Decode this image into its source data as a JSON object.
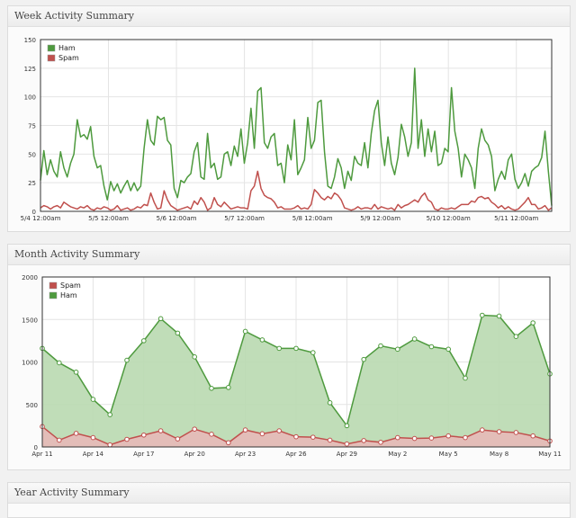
{
  "panels": {
    "week_title": "Week Activity Summary",
    "month_title": "Month Activity Summary",
    "year_title": "Year Activity Summary"
  },
  "colors": {
    "ham": "#4e9a3e",
    "spam": "#c0504d",
    "ham_fill": "#b9d9b0",
    "spam_fill": "#e7b9b8"
  },
  "chart_data": [
    {
      "type": "line",
      "title": "Week Activity Summary",
      "ylim": [
        0,
        150
      ],
      "yticks": [
        0,
        25,
        50,
        75,
        100,
        125,
        150
      ],
      "xlim": [
        0,
        7.52
      ],
      "xticks": [
        {
          "x": 0,
          "label": "5/4 12:00am"
        },
        {
          "x": 1,
          "label": "5/5 12:00am"
        },
        {
          "x": 2,
          "label": "5/6 12:00am"
        },
        {
          "x": 3,
          "label": "5/7 12:00am"
        },
        {
          "x": 4,
          "label": "5/8 12:00am"
        },
        {
          "x": 5,
          "label": "5/9 12:00am"
        },
        {
          "x": 6,
          "label": "5/10 12:00am"
        },
        {
          "x": 7,
          "label": "5/11 12:00am"
        }
      ],
      "legend": [
        "Ham",
        "Spam"
      ],
      "legend_position": "top-left",
      "series": [
        {
          "name": "Ham",
          "values": [
            27,
            53,
            32,
            45,
            35,
            30,
            52,
            38,
            30,
            42,
            50,
            80,
            65,
            67,
            63,
            74,
            48,
            38,
            40,
            22,
            10,
            26,
            18,
            24,
            16,
            22,
            27,
            18,
            25,
            18,
            22,
            55,
            80,
            62,
            58,
            83,
            80,
            82,
            62,
            58,
            20,
            12,
            27,
            25,
            30,
            33,
            52,
            60,
            30,
            28,
            68,
            38,
            42,
            28,
            30,
            50,
            52,
            40,
            57,
            48,
            72,
            42,
            60,
            90,
            55,
            105,
            108,
            60,
            55,
            65,
            68,
            40,
            42,
            25,
            58,
            45,
            80,
            32,
            38,
            45,
            82,
            55,
            62,
            95,
            97,
            52,
            22,
            20,
            30,
            46,
            38,
            20,
            35,
            27,
            48,
            42,
            40,
            60,
            38,
            68,
            88,
            97,
            60,
            40,
            65,
            42,
            32,
            47,
            76,
            65,
            48,
            60,
            125,
            55,
            80,
            48,
            72,
            52,
            70,
            40,
            42,
            55,
            52,
            108,
            70,
            55,
            30,
            50,
            45,
            38,
            20,
            55,
            72,
            62,
            58,
            48,
            18,
            28,
            35,
            28,
            45,
            50,
            28,
            20,
            25,
            33,
            22,
            35,
            38,
            40,
            47,
            70,
            35,
            5
          ],
          "color_key": "ham"
        },
        {
          "name": "Spam",
          "values": [
            3,
            5,
            4,
            2,
            4,
            5,
            3,
            8,
            6,
            4,
            3,
            2,
            4,
            3,
            5,
            2,
            1,
            3,
            2,
            4,
            3,
            1,
            2,
            5,
            1,
            2,
            3,
            1,
            2,
            4,
            3,
            6,
            5,
            16,
            8,
            2,
            3,
            18,
            10,
            5,
            3,
            1,
            2,
            3,
            4,
            2,
            9,
            6,
            12,
            8,
            1,
            3,
            12,
            6,
            4,
            8,
            5,
            2,
            3,
            4,
            3,
            3,
            2,
            18,
            22,
            35,
            20,
            14,
            12,
            11,
            8,
            3,
            4,
            2,
            2,
            2,
            3,
            5,
            2,
            3,
            2,
            6,
            19,
            16,
            12,
            10,
            13,
            11,
            16,
            14,
            10,
            3,
            2,
            1,
            2,
            4,
            2,
            3,
            3,
            2,
            6,
            2,
            4,
            3,
            2,
            3,
            1,
            6,
            3,
            5,
            6,
            8,
            10,
            8,
            13,
            16,
            10,
            8,
            2,
            1,
            3,
            2,
            2,
            3,
            2,
            4,
            6,
            6,
            6,
            9,
            8,
            12,
            13,
            11,
            12,
            8,
            6,
            3,
            5,
            2,
            4,
            2,
            1,
            2,
            5,
            8,
            12,
            6,
            6,
            2,
            3,
            5,
            1,
            3
          ]
        }
      ]
    },
    {
      "type": "area",
      "title": "Month Activity Summary",
      "ylim": [
        0,
        2000
      ],
      "yticks": [
        0,
        500,
        1000,
        1500,
        2000
      ],
      "x_categories": [
        "Apr 11",
        "Apr 12",
        "Apr 13",
        "Apr 14",
        "Apr 15",
        "Apr 16",
        "Apr 17",
        "Apr 18",
        "Apr 19",
        "Apr 20",
        "Apr 21",
        "Apr 22",
        "Apr 23",
        "Apr 24",
        "Apr 25",
        "Apr 26",
        "Apr 27",
        "Apr 28",
        "Apr 29",
        "Apr 30",
        "May 1",
        "May 2",
        "May 3",
        "May 4",
        "May 5",
        "May 6",
        "May 7",
        "May 8",
        "May 9",
        "May 10",
        "May 11"
      ],
      "xtick_labels": [
        "Apr 11",
        "Apr 14",
        "Apr 17",
        "Apr 20",
        "Apr 23",
        "Apr 26",
        "Apr 29",
        "May 2",
        "May 5",
        "May 8",
        "May 11"
      ],
      "legend": [
        "Spam",
        "Ham"
      ],
      "legend_position": "top-left",
      "series": [
        {
          "name": "Spam",
          "values": [
            240,
            80,
            160,
            110,
            25,
            90,
            140,
            190,
            95,
            210,
            150,
            50,
            200,
            155,
            190,
            120,
            115,
            80,
            35,
            75,
            55,
            110,
            100,
            105,
            130,
            110,
            200,
            180,
            170,
            130,
            70
          ]
        },
        {
          "name": "Ham",
          "values": [
            1160,
            990,
            880,
            560,
            380,
            1020,
            1250,
            1510,
            1340,
            1060,
            690,
            700,
            1360,
            1260,
            1160,
            1160,
            1110,
            520,
            250,
            1030,
            1190,
            1150,
            1270,
            1180,
            1150,
            810,
            1550,
            1540,
            1300,
            1460,
            860
          ]
        }
      ]
    }
  ]
}
